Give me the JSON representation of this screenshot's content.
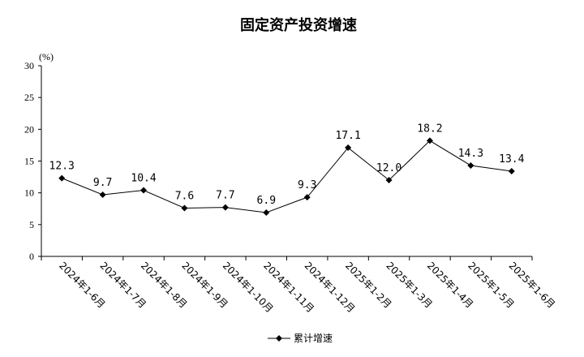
{
  "chart_data": {
    "type": "line",
    "title": "固定资产投资增速",
    "unit_label": "(%)",
    "categories": [
      "2024年1-6月",
      "2024年1-7月",
      "2024年1-8月",
      "2024年1-9月",
      "2024年1-10月",
      "2024年1-11月",
      "2024年1-12月",
      "2025年1-2月",
      "2025年1-3月",
      "2025年1-4月",
      "2025年1-5月",
      "2025年1-6月"
    ],
    "series": [
      {
        "name": "累计增速",
        "values": [
          12.3,
          9.7,
          10.4,
          7.6,
          7.7,
          6.9,
          9.3,
          17.1,
          12.0,
          18.2,
          14.3,
          13.4
        ],
        "labels": [
          "12.3",
          "9.7",
          "10.4",
          "7.6",
          "7.7",
          "6.9",
          "9.3",
          "17.1",
          "12.0",
          "18.2",
          "14.3",
          "13.4"
        ],
        "color": "#000000",
        "marker": "diamond"
      }
    ],
    "ylim": [
      0,
      30
    ],
    "yticks": [
      "0",
      "5",
      "10",
      "15",
      "20",
      "25",
      "30"
    ],
    "grid": false,
    "legend_position": "bottom"
  }
}
